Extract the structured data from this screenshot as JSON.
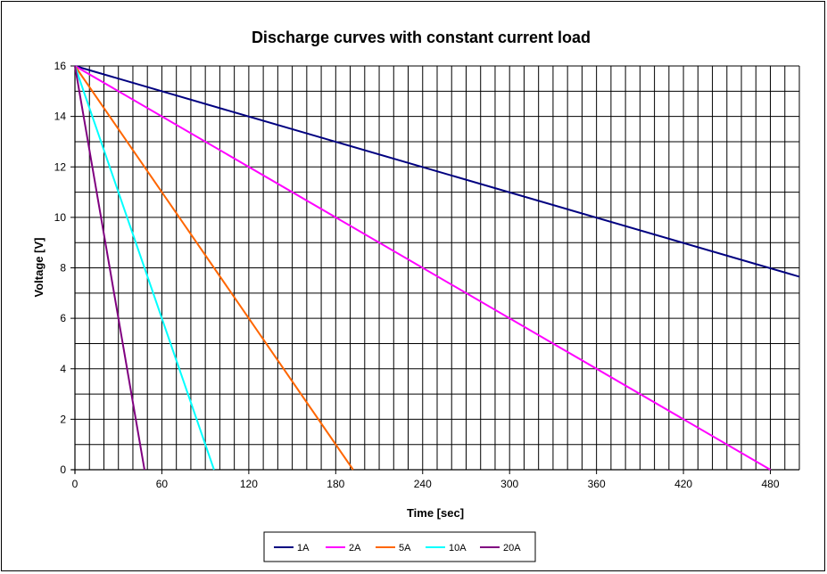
{
  "chart_data": {
    "type": "line",
    "title": "Discharge curves with constant current load",
    "xlabel": "Time [sec]",
    "ylabel": "Voltage [V]",
    "xlim": [
      0,
      500
    ],
    "ylim": [
      0,
      16
    ],
    "x_ticks": [
      0,
      60,
      120,
      180,
      240,
      300,
      360,
      420,
      480
    ],
    "x_tick_labels": [
      "0",
      "60",
      "120",
      "180",
      "240",
      "300",
      "360",
      "420",
      "480"
    ],
    "y_ticks": [
      0,
      2,
      4,
      6,
      8,
      10,
      12,
      14,
      16
    ],
    "y_tick_labels": [
      "0",
      "2",
      "4",
      "6",
      "8",
      "10",
      "12",
      "14",
      "16"
    ],
    "x_minor_step": 10,
    "y_minor_step": 1,
    "grid": true,
    "legend_position": "bottom",
    "series": [
      {
        "name": "1A",
        "color": "#000080",
        "x": [
          0,
          500
        ],
        "y": [
          16,
          7.65
        ]
      },
      {
        "name": "2A",
        "color": "#FF00FF",
        "x": [
          0,
          480
        ],
        "y": [
          16,
          0
        ]
      },
      {
        "name": "5A",
        "color": "#FF6600",
        "x": [
          0,
          192
        ],
        "y": [
          16,
          0
        ]
      },
      {
        "name": "10A",
        "color": "#00FFFF",
        "x": [
          0,
          96
        ],
        "y": [
          16,
          0
        ]
      },
      {
        "name": "20A",
        "color": "#800080",
        "x": [
          0,
          48
        ],
        "y": [
          16,
          0
        ]
      }
    ]
  }
}
